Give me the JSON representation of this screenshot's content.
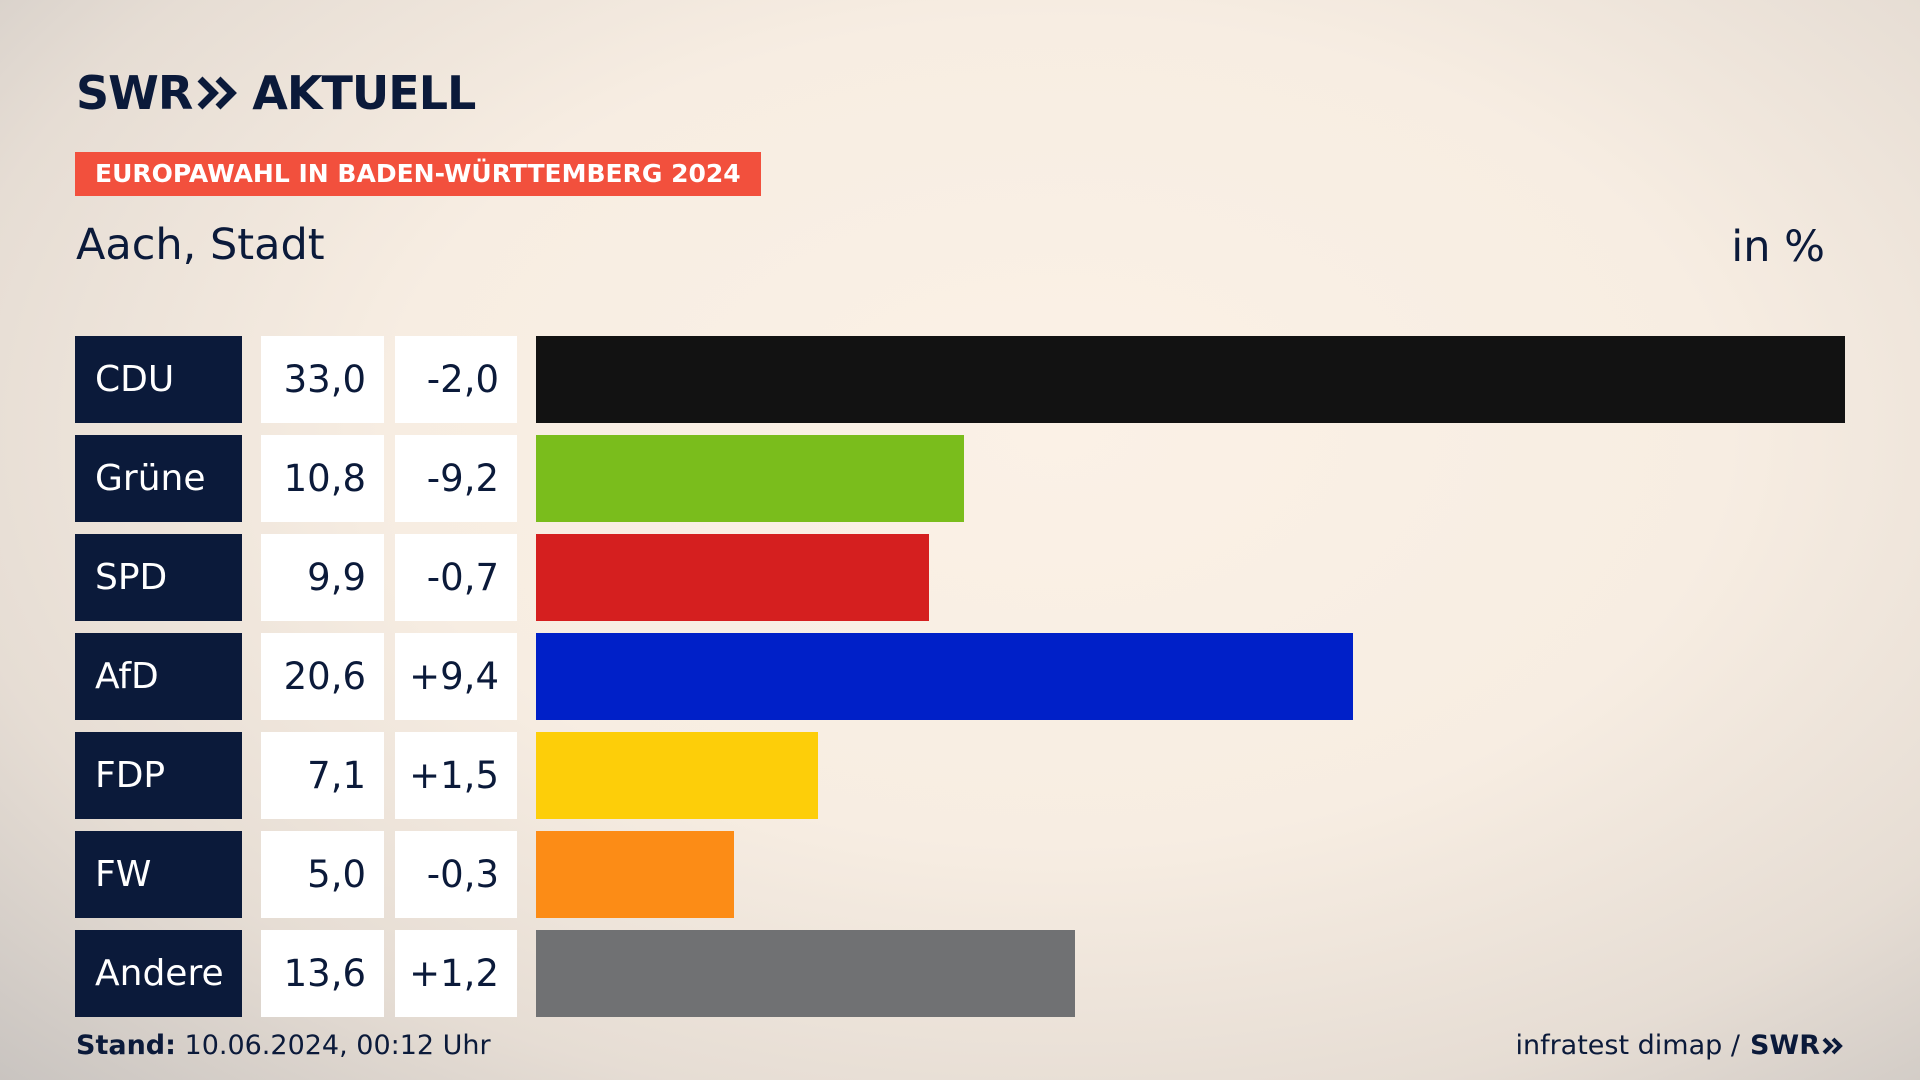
{
  "header": {
    "logo_part1": "SWR",
    "logo_part2": "AKTUELL",
    "banner": "EUROPAWAHL IN BADEN-WÜRTTEMBERG 2024",
    "region": "Aach, Stadt",
    "unit": "in %"
  },
  "footer": {
    "stand_label": "Stand:",
    "stand_value": "10.06.2024, 00:12 Uhr",
    "source": "infratest dimap /",
    "source_logo": "SWR"
  },
  "colors": {
    "panel": "#0b1a3a",
    "banner": "#f2503d"
  },
  "chart_data": {
    "type": "bar",
    "orientation": "horizontal",
    "xlim": [
      0,
      33.0
    ],
    "categories": [
      "CDU",
      "Grüne",
      "SPD",
      "AfD",
      "FDP",
      "FW",
      "Andere"
    ],
    "values": [
      33.0,
      10.8,
      9.9,
      20.6,
      7.1,
      5.0,
      13.6
    ],
    "values_label": [
      "33,0",
      "10,8",
      "9,9",
      "20,6",
      "7,1",
      "5,0",
      "13,6"
    ],
    "diff_label": [
      "-2,0",
      "-9,2",
      "-0,7",
      "+9,4",
      "+1,5",
      "-0,3",
      "+1,2"
    ],
    "colors": [
      "#121212",
      "#7abd1c",
      "#d51f1f",
      "#0020c8",
      "#fdce09",
      "#fc8c16",
      "#707173"
    ]
  }
}
